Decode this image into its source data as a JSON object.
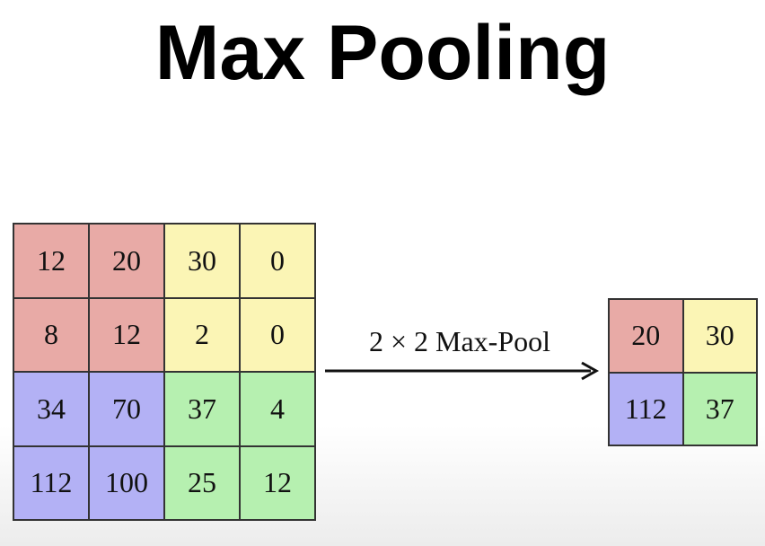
{
  "title": "Max Pooling",
  "colors": {
    "red": "#e8aaa6",
    "yellow": "#fbf5b5",
    "blue": "#b3b1f5",
    "green": "#b6f0b0"
  },
  "input_grid": {
    "rows": [
      [
        {
          "value": "12",
          "color": "red"
        },
        {
          "value": "20",
          "color": "red"
        },
        {
          "value": "30",
          "color": "yellow"
        },
        {
          "value": "0",
          "color": "yellow"
        }
      ],
      [
        {
          "value": "8",
          "color": "red"
        },
        {
          "value": "12",
          "color": "red"
        },
        {
          "value": "2",
          "color": "yellow"
        },
        {
          "value": "0",
          "color": "yellow"
        }
      ],
      [
        {
          "value": "34",
          "color": "blue"
        },
        {
          "value": "70",
          "color": "blue"
        },
        {
          "value": "37",
          "color": "green"
        },
        {
          "value": "4",
          "color": "green"
        }
      ],
      [
        {
          "value": "112",
          "color": "blue"
        },
        {
          "value": "100",
          "color": "blue"
        },
        {
          "value": "25",
          "color": "green"
        },
        {
          "value": "12",
          "color": "green"
        }
      ]
    ]
  },
  "operation_label": "2 × 2 Max-Pool",
  "output_grid": {
    "rows": [
      [
        {
          "value": "20",
          "color": "red"
        },
        {
          "value": "30",
          "color": "yellow"
        }
      ],
      [
        {
          "value": "112",
          "color": "blue"
        },
        {
          "value": "37",
          "color": "green"
        }
      ]
    ]
  }
}
